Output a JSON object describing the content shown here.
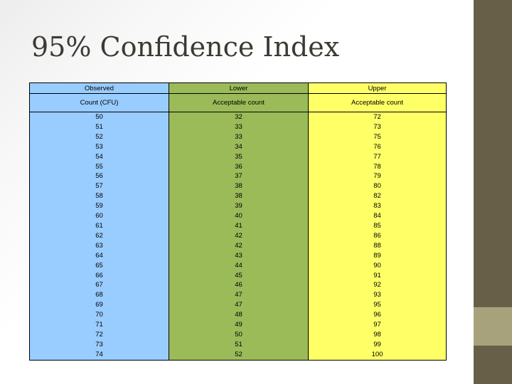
{
  "slide": {
    "title": "95% Confidence Index",
    "colors": {
      "observed": "#99ccff",
      "lower": "#9bbb59",
      "upper": "#ffff66",
      "sidebar": "#675f48",
      "sidebar_accent": "#a8a27c"
    }
  },
  "table": {
    "headers": [
      "Observed",
      "Lower",
      "Upper"
    ],
    "subheaders": [
      "Count (CFU)",
      "Acceptable count",
      "Acceptable count"
    ],
    "rows": [
      [
        "50",
        "32",
        "72"
      ],
      [
        "51",
        "33",
        "73"
      ],
      [
        "52",
        "33",
        "75"
      ],
      [
        "53",
        "34",
        "76"
      ],
      [
        "54",
        "35",
        "77"
      ],
      [
        "55",
        "36",
        "78"
      ],
      [
        "56",
        "37",
        "79"
      ],
      [
        "57",
        "38",
        "80"
      ],
      [
        "58",
        "38",
        "82"
      ],
      [
        "59",
        "39",
        "83"
      ],
      [
        "60",
        "40",
        "84"
      ],
      [
        "61",
        "41",
        "85"
      ],
      [
        "62",
        "42",
        "86"
      ],
      [
        "63",
        "42",
        "88"
      ],
      [
        "64",
        "43",
        "89"
      ],
      [
        "65",
        "44",
        "90"
      ],
      [
        "66",
        "45",
        "91"
      ],
      [
        "67",
        "46",
        "92"
      ],
      [
        "68",
        "47",
        "93"
      ],
      [
        "69",
        "47",
        "95"
      ],
      [
        "70",
        "48",
        "96"
      ],
      [
        "71",
        "49",
        "97"
      ],
      [
        "72",
        "50",
        "98"
      ],
      [
        "73",
        "51",
        "99"
      ],
      [
        "74",
        "52",
        "100"
      ]
    ]
  }
}
